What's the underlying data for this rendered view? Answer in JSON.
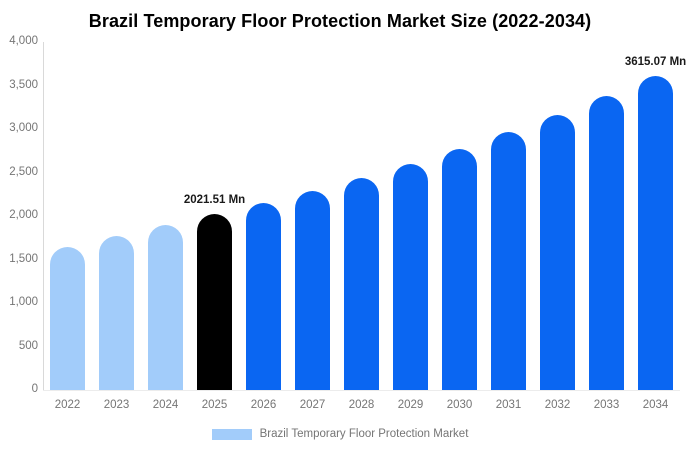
{
  "chart_data": {
    "type": "bar",
    "title": "Brazil Temporary Floor Protection Market Size (2022-2034)",
    "categories": [
      "2022",
      "2023",
      "2024",
      "2025",
      "2026",
      "2027",
      "2028",
      "2029",
      "2030",
      "2031",
      "2032",
      "2033",
      "2034"
    ],
    "values": [
      1640,
      1770,
      1895,
      2021.51,
      2150,
      2290,
      2435,
      2600,
      2770,
      2960,
      3160,
      3380,
      3615.07
    ],
    "unit": "Mn",
    "xlabel": "",
    "ylabel": "",
    "ylim": [
      0,
      4000
    ],
    "yticks": [
      "4,000",
      "3,500",
      "3,000",
      "2,500",
      "2,000",
      "1,500",
      "1,000",
      "500",
      "0"
    ],
    "ytick_values": [
      4000,
      3500,
      3000,
      2500,
      2000,
      1500,
      1000,
      500,
      0
    ],
    "grid": false,
    "legend_position": "bottom",
    "bar_colors": [
      "light",
      "light",
      "light",
      "highlight",
      "primary",
      "primary",
      "primary",
      "primary",
      "primary",
      "primary",
      "primary",
      "primary",
      "primary"
    ],
    "annotations": [
      {
        "index": 3,
        "text": "2021.51 Mn"
      },
      {
        "index": 12,
        "text": "3615.07 Mn"
      }
    ]
  },
  "legend": {
    "label": "Brazil Temporary Floor Protection Market"
  },
  "colors": {
    "primary": "#0a66f2",
    "light": "#a2ccfa",
    "highlight": "#000000",
    "axis_line": "#d9d9d9",
    "baseline": "#ececec",
    "muted_text": "#757575",
    "label_text": "#1a1a1a",
    "title_text": "#000000"
  }
}
